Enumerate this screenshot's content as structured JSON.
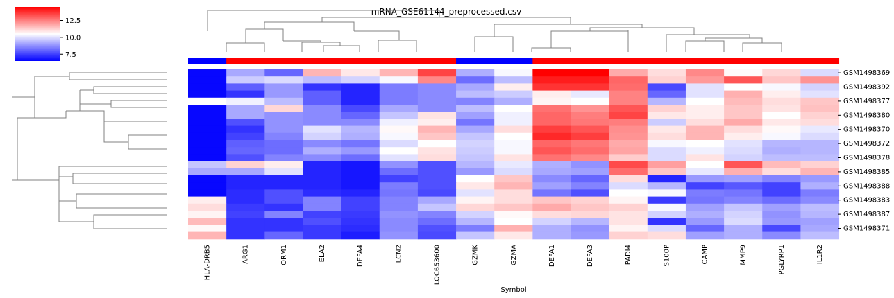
{
  "chart_data": {
    "type": "heatmap",
    "title": "mRNA_GSE61144_preprocessed.csv",
    "xlabel": "Symbol",
    "ylabel": "",
    "columns": [
      "HLA-DRB5",
      "ARG1",
      "ORM1",
      "ELA2",
      "DEFA4",
      "LCN2",
      "LOC653600",
      "GZMK",
      "GZMA",
      "DEFA1",
      "DEFA3",
      "PADI4",
      "S100P",
      "CAMP",
      "MMP9",
      "PGLYRP1",
      "IL1R2"
    ],
    "row_tick_labels": [
      "GSM1498369",
      "GSM1498392",
      "GSM1498377",
      "GSM1498380",
      "GSM1498370",
      "GSM1498372",
      "GSM1498378",
      "GSM1498385",
      "GSM1498388",
      "GSM1498383",
      "GSM1498387",
      "GSM1498371"
    ],
    "row_count": 24,
    "color_scale": {
      "min": 6.5,
      "center": 10.0,
      "max": 14.5,
      "low_color": "#0000ff",
      "mid_color": "#ffffff",
      "high_color": "#ff0000"
    },
    "colorbar_ticks": [
      "12.5",
      "10.0",
      "7.5"
    ],
    "column_group_colors": [
      "#0000ff",
      "#ff0000",
      "#ff0000",
      "#ff0000",
      "#ff0000",
      "#ff0000",
      "#ff0000",
      "#0000ff",
      "#0000ff",
      "#ff0000",
      "#ff0000",
      "#ff0000",
      "#ff0000",
      "#ff0000",
      "#ff0000",
      "#ff0000",
      "#ff0000"
    ],
    "values": [
      [
        6.6,
        8.8,
        7.9,
        11.3,
        10.4,
        11.3,
        13.3,
        8.9,
        9.9,
        15.0,
        14.5,
        11.5,
        10.6,
        12.1,
        10.1,
        10.7,
        9.5
      ],
      [
        6.6,
        9.3,
        9.5,
        9.1,
        9.4,
        9.9,
        12.1,
        8.0,
        9.1,
        14.0,
        14.0,
        12.7,
        10.8,
        11.8,
        13.0,
        11.0,
        11.9
      ],
      [
        6.6,
        7.8,
        8.6,
        7.2,
        7.0,
        8.2,
        8.4,
        8.8,
        10.3,
        13.6,
        13.6,
        12.6,
        7.5,
        9.6,
        10.0,
        9.9,
        9.4
      ],
      [
        6.6,
        7.2,
        8.6,
        7.8,
        7.0,
        8.2,
        8.4,
        9.1,
        9.3,
        10.3,
        9.7,
        12.2,
        7.9,
        9.6,
        11.4,
        10.3,
        9.6
      ],
      [
        10.0,
        9.8,
        9.1,
        7.8,
        7.0,
        8.2,
        8.4,
        8.3,
        8.9,
        10.2,
        10.0,
        12.2,
        9.0,
        10.0,
        11.2,
        10.6,
        11.0
      ],
      [
        6.6,
        8.8,
        10.7,
        8.4,
        7.5,
        8.8,
        8.4,
        9.1,
        10.0,
        12.5,
        11.9,
        13.0,
        10.8,
        10.3,
        11.0,
        10.5,
        11.1
      ],
      [
        6.6,
        8.8,
        8.5,
        8.4,
        7.9,
        9.2,
        10.5,
        8.7,
        9.8,
        12.7,
        12.3,
        13.3,
        10.4,
        10.3,
        11.0,
        10.0,
        10.8
      ],
      [
        6.6,
        7.6,
        8.5,
        8.4,
        8.4,
        9.8,
        10.3,
        8.1,
        9.8,
        12.7,
        12.4,
        12.3,
        9.3,
        10.6,
        11.5,
        10.4,
        10.6
      ],
      [
        6.6,
        7.2,
        8.5,
        9.6,
        9.0,
        10.1,
        11.3,
        8.8,
        10.6,
        13.4,
        13.0,
        12.0,
        10.4,
        11.3,
        10.6,
        10.1,
        9.7
      ],
      [
        6.6,
        7.4,
        8.3,
        9.4,
        8.9,
        9.9,
        11.0,
        9.2,
        10.0,
        13.8,
        13.4,
        11.9,
        10.6,
        11.3,
        10.3,
        9.9,
        9.5
      ],
      [
        6.6,
        7.8,
        8.0,
        8.4,
        8.1,
        9.5,
        10.0,
        9.4,
        9.9,
        12.7,
        12.4,
        11.5,
        9.9,
        10.0,
        9.6,
        9.0,
        9.0
      ],
      [
        6.6,
        7.9,
        8.0,
        8.9,
        8.6,
        10.0,
        10.5,
        9.3,
        9.9,
        13.0,
        12.6,
        11.6,
        9.5,
        9.8,
        9.5,
        8.9,
        9.0
      ],
      [
        6.6,
        7.6,
        8.3,
        8.4,
        8.0,
        9.6,
        10.6,
        9.2,
        10.5,
        12.5,
        12.1,
        10.9,
        9.5,
        10.5,
        9.4,
        9.1,
        9.1
      ],
      [
        9.2,
        10.8,
        10.3,
        7.0,
        6.8,
        8.5,
        7.6,
        9.0,
        9.7,
        8.9,
        8.5,
        13.2,
        11.7,
        10.0,
        13.0,
        11.2,
        10.8
      ],
      [
        8.8,
        8.8,
        9.6,
        7.0,
        6.8,
        8.0,
        7.6,
        8.6,
        9.5,
        8.8,
        8.7,
        12.6,
        11.0,
        9.7,
        11.4,
        10.6,
        11.3
      ],
      [
        6.6,
        7.0,
        7.0,
        7.0,
        6.8,
        7.4,
        7.6,
        10.0,
        11.0,
        8.4,
        7.9,
        10.6,
        7.0,
        8.6,
        8.7,
        8.3,
        8.6
      ],
      [
        6.6,
        7.0,
        7.0,
        7.0,
        6.8,
        8.2,
        7.6,
        10.4,
        11.3,
        8.7,
        8.3,
        9.5,
        9.0,
        7.4,
        7.7,
        7.4,
        8.9
      ],
      [
        6.6,
        7.1,
        7.6,
        7.1,
        7.0,
        8.1,
        7.5,
        9.6,
        10.6,
        8.1,
        7.6,
        10.0,
        9.9,
        8.2,
        8.1,
        7.4,
        8.2
      ],
      [
        10.3,
        7.1,
        7.6,
        8.3,
        7.4,
        8.3,
        8.8,
        10.2,
        10.6,
        11.0,
        10.8,
        10.2,
        7.3,
        8.1,
        8.3,
        8.0,
        8.4
      ],
      [
        10.6,
        7.3,
        7.2,
        8.3,
        7.4,
        8.3,
        9.2,
        10.7,
        11.0,
        11.5,
        11.0,
        10.8,
        9.9,
        8.7,
        9.2,
        8.7,
        9.1
      ],
      [
        10.2,
        7.4,
        8.3,
        7.4,
        7.3,
        8.5,
        8.3,
        9.4,
        10.1,
        10.6,
        10.7,
        10.5,
        9.4,
        8.9,
        9.4,
        8.5,
        9.0
      ],
      [
        11.2,
        7.2,
        7.2,
        7.6,
        7.2,
        8.4,
        8.0,
        9.0,
        10.0,
        9.4,
        9.0,
        10.5,
        7.2,
        8.6,
        9.5,
        8.6,
        8.7
      ],
      [
        10.1,
        7.2,
        7.2,
        7.3,
        7.1,
        8.4,
        7.6,
        8.2,
        11.4,
        8.9,
        8.5,
        10.2,
        9.5,
        7.9,
        8.9,
        7.5,
        8.8
      ],
      [
        11.3,
        7.2,
        7.9,
        7.3,
        6.9,
        8.5,
        7.5,
        9.2,
        10.4,
        8.9,
        8.6,
        10.8,
        10.6,
        8.7,
        8.9,
        8.4,
        9.1
      ]
    ]
  }
}
